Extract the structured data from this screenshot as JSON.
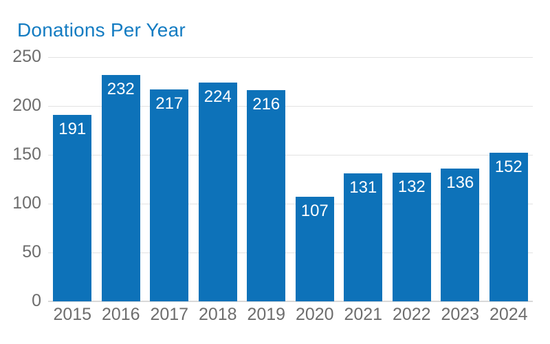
{
  "title": "Donations Per Year",
  "colors": {
    "title": "#147cc2",
    "bar": "#0d72b9",
    "bar_value_label": "#ffffff",
    "axis_label": "#6d6d6d",
    "gridline": "#e2e2e2",
    "baseline": "#d9d9d9",
    "background": "#ffffff"
  },
  "chart_data": {
    "type": "bar",
    "title": "Donations Per Year",
    "categories": [
      "2015",
      "2016",
      "2017",
      "2018",
      "2019",
      "2020",
      "2021",
      "2022",
      "2023",
      "2024"
    ],
    "values": [
      191,
      232,
      217,
      224,
      216,
      107,
      131,
      132,
      136,
      152
    ],
    "xlabel": "",
    "ylabel": "",
    "ylim": [
      0,
      250
    ],
    "yticks": [
      0,
      50,
      100,
      150,
      200,
      250
    ],
    "grid": true,
    "legend": false,
    "value_labels": "inside-top"
  }
}
